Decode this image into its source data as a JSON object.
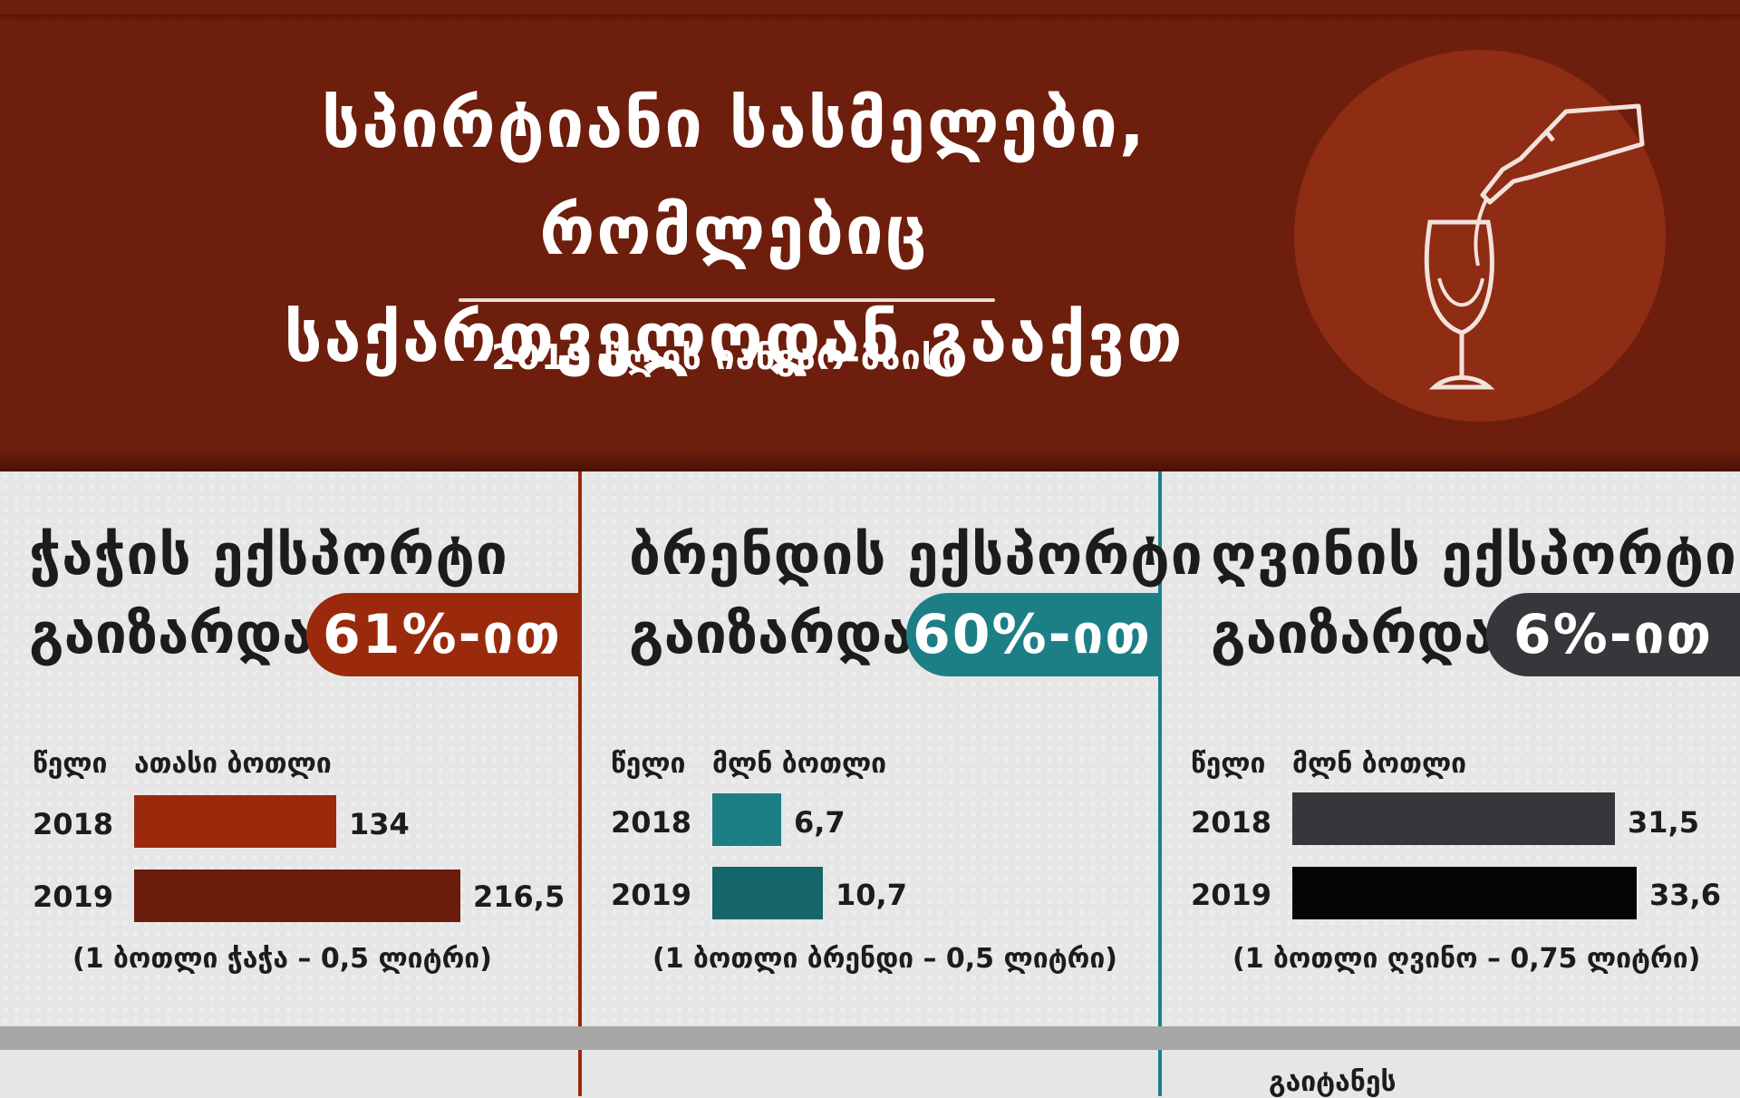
{
  "header": {
    "title_line1": "სპირტიანი სასმელები, რომლებიც",
    "title_line2": "საქართველოდან გააქვთ",
    "subtitle": "2019 წლის იანვარ-მაისი"
  },
  "colors": {
    "header_bg": "#6e1e0c",
    "chacha_2018": "#9b2a0c",
    "chacha_2019": "#6b1c0a",
    "chacha_pill": "#9b2a0c",
    "brandy_2018": "#1c7f86",
    "brandy_2019": "#15666b",
    "brandy_pill": "#1c7f86",
    "wine_2018": "#37373b",
    "wine_2019": "#050505",
    "wine_pill": "#37373b"
  },
  "panels": [
    {
      "heading": "ჭაჭის ექსპორტი",
      "verb": "გაიზარდა",
      "badge": "61%-ით",
      "col_year": "წელი",
      "col_unit": "ათასი ბოთლი",
      "rows": [
        {
          "year": "2018",
          "label": "134"
        },
        {
          "year": "2019",
          "label": "216,5"
        }
      ],
      "note": "(1 ბოთლი ჭაჭა – 0,5 ლიტრი)"
    },
    {
      "heading": "ბრენდის ექსპორტი",
      "verb": "გაიზარდა",
      "badge": "60%-ით",
      "col_year": "წელი",
      "col_unit": "მლნ ბოთლი",
      "rows": [
        {
          "year": "2018",
          "label": "6,7"
        },
        {
          "year": "2019",
          "label": "10,7"
        }
      ],
      "note": "(1 ბოთლი ბრენდი – 0,5 ლიტრი)"
    },
    {
      "heading": "ღვინის ექსპორტი",
      "verb": "გაიზარდა",
      "badge": "6%-ით",
      "col_year": "წელი",
      "col_unit": "მლნ ბოთლი",
      "rows": [
        {
          "year": "2018",
          "label": "31,5"
        },
        {
          "year": "2019",
          "label": "33,6"
        }
      ],
      "note": "(1 ბოთლი ღვინო – 0,75 ლიტრი)"
    }
  ],
  "footer_cut_text": "გაიტანეს",
  "chart_data": [
    {
      "type": "bar",
      "orientation": "horizontal",
      "title": "ჭაჭის ექსპორტი გაიზარდა 61%-ით",
      "categories": [
        "2018",
        "2019"
      ],
      "values": [
        134,
        216.5
      ],
      "xlabel": "ათასი ბოთლი",
      "ylabel": "წელი",
      "xlim": [
        0,
        216.5
      ]
    },
    {
      "type": "bar",
      "orientation": "horizontal",
      "title": "ბრენდის ექსპორტი გაიზარდა 60%-ით",
      "categories": [
        "2018",
        "2019"
      ],
      "values": [
        6.7,
        10.7
      ],
      "xlabel": "მლნ ბოთლი",
      "ylabel": "წელი",
      "xlim": [
        0,
        10.7
      ]
    },
    {
      "type": "bar",
      "orientation": "horizontal",
      "title": "ღვინის ექსპორტი გაიზარდა 6%-ით",
      "categories": [
        "2018",
        "2019"
      ],
      "values": [
        31.5,
        33.6
      ],
      "xlabel": "მლნ ბოთლი",
      "ylabel": "წელი",
      "xlim": [
        0,
        33.6
      ]
    }
  ]
}
